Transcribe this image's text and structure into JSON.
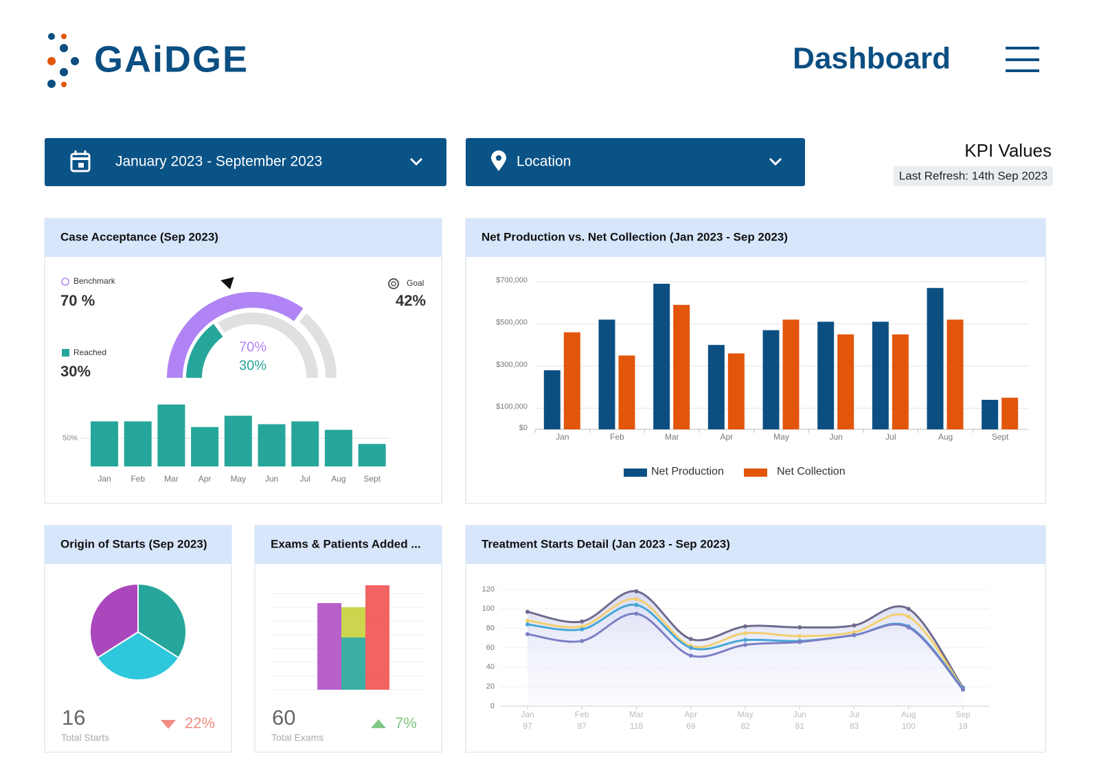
{
  "header": {
    "logo": "GAiDGE",
    "title": "Dashboard"
  },
  "filters": {
    "date_range": "January 2023 - September 2023",
    "location": "Location"
  },
  "kpi": {
    "title": "KPI Values",
    "last_refresh": "Last Refresh: 14th Sep 2023"
  },
  "chart_data": [
    {
      "type": "gauge_bar",
      "title": "Case Acceptance (Sep 2023)",
      "benchmark": {
        "label": "Benchmark",
        "value": 70,
        "value_label": "70 %",
        "center_label": "70%",
        "color": "#b084f5"
      },
      "reached": {
        "label": "Reached",
        "value": 30,
        "value_label": "30%",
        "center_label": "30%",
        "color": "#26a69a"
      },
      "goal": {
        "label": "Goal",
        "value": 42,
        "value_label": "42%"
      },
      "categories": [
        "Jan",
        "Feb",
        "Mar",
        "Apr",
        "May",
        "Jun",
        "Jul",
        "Aug",
        "Sept"
      ],
      "values": [
        56,
        56,
        62,
        54,
        58,
        55,
        56,
        53,
        48
      ],
      "color": "#26a69a",
      "ylim": [
        40,
        80
      ],
      "yticks": [
        {
          "value": 50,
          "label": "50%"
        }
      ]
    },
    {
      "type": "bar",
      "title": "Net Production vs. Net Collection (Jan 2023 - Sep 2023)",
      "categories": [
        "Jan",
        "Feb",
        "Mar",
        "Apr",
        "May",
        "Jun",
        "Jul",
        "Aug",
        "Sept"
      ],
      "series": [
        {
          "name": "Net Production",
          "color": "#0b4f82",
          "values": [
            280000,
            520000,
            690000,
            400000,
            470000,
            510000,
            510000,
            670000,
            140000
          ]
        },
        {
          "name": "Net Collection",
          "color": "#e2560c",
          "values": [
            460000,
            350000,
            590000,
            360000,
            520000,
            450000,
            450000,
            520000,
            150000
          ]
        }
      ],
      "ylim": [
        0,
        700000
      ],
      "yticks": [
        {
          "value": 0,
          "label": "$0"
        },
        {
          "value": 100000,
          "label": "$100,000"
        },
        {
          "value": 300000,
          "label": "$300,000"
        },
        {
          "value": 500000,
          "label": "$500,000"
        },
        {
          "value": 700000,
          "label": "$700,000"
        }
      ],
      "grid": true
    },
    {
      "type": "pie",
      "title": "Origin of Starts (Sep 2023)",
      "values": [
        34,
        32,
        34
      ],
      "colors": [
        "#26a69a",
        "#2ec7dc",
        "#ab47bc"
      ],
      "summary": {
        "value": 16,
        "label": "Total Starts",
        "change": 22,
        "change_label": "22%",
        "direction": "down"
      }
    },
    {
      "type": "stacked_bar",
      "title": "Exams & Patients Added ...",
      "series": [
        {
          "color": "#b04fc4",
          "values": [
            6.3,
            null,
            null
          ]
        },
        {
          "color": "#26a69a",
          "values": [
            null,
            3.8,
            null
          ]
        },
        {
          "color": "#c5d13b",
          "values": [
            null,
            2.2,
            null
          ]
        },
        {
          "color": "#ef5350",
          "values": [
            null,
            null,
            7.6
          ]
        }
      ],
      "ylim": [
        0,
        8
      ],
      "yticks": [
        0,
        1,
        2,
        3,
        4,
        5,
        6,
        7
      ],
      "summary": {
        "value": 60,
        "label": "Total Exams",
        "change": 7,
        "change_label": "7%",
        "direction": "up"
      }
    },
    {
      "type": "line",
      "title": "Treatment Starts Detail (Jan 2023 - Sep 2023)",
      "categories": [
        "Jan",
        "Feb",
        "Mar",
        "Apr",
        "May",
        "Jun",
        "Jul",
        "Aug",
        "Sep"
      ],
      "series": [
        {
          "color": "#6d6a8c",
          "values": [
            97,
            87,
            118,
            69,
            82,
            81,
            83,
            100,
            19
          ]
        },
        {
          "color": "#f3cf6e",
          "values": [
            88,
            82,
            110,
            62,
            75,
            72,
            76,
            92,
            18
          ]
        },
        {
          "color": "#45a6d6",
          "values": [
            84,
            79,
            104,
            60,
            68,
            67,
            73,
            82,
            18
          ]
        },
        {
          "color": "#7b7fc4",
          "values": [
            74,
            67,
            95,
            52,
            63,
            66,
            73,
            81,
            17
          ]
        }
      ],
      "ylim": [
        0,
        120
      ],
      "yticks": [
        0,
        20,
        40,
        60,
        80,
        100,
        120
      ],
      "grid": true
    }
  ]
}
